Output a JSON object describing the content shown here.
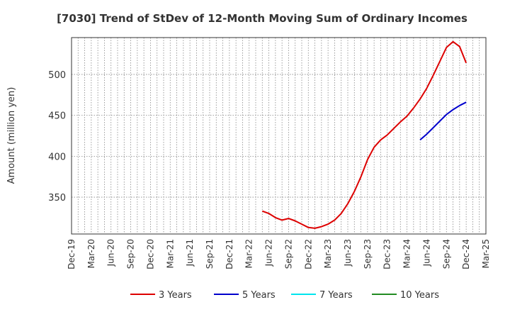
{
  "chart_data": {
    "type": "line",
    "title": "[7030]  Trend of StDev of 12-Month Moving Sum of Ordinary Incomes",
    "ylabel": "Amount (million yen)",
    "xlabel": "",
    "ylim": [
      305,
      545
    ],
    "yticks": [
      350,
      400,
      450,
      500
    ],
    "x_ticks": [
      "Dec-19",
      "Mar-20",
      "Jun-20",
      "Sep-20",
      "Dec-20",
      "Mar-21",
      "Jun-21",
      "Sep-21",
      "Dec-21",
      "Mar-22",
      "Jun-22",
      "Sep-22",
      "Dec-22",
      "Mar-23",
      "Jun-23",
      "Sep-23",
      "Dec-23",
      "Mar-24",
      "Jun-24",
      "Sep-24",
      "Dec-24",
      "Mar-25"
    ],
    "grid": true,
    "legend_position": "bottom",
    "series": [
      {
        "name": "3 Years",
        "color": "#dd0000",
        "x": [
          "May-22",
          "Jun-22",
          "Jul-22",
          "Aug-22",
          "Sep-22",
          "Oct-22",
          "Nov-22",
          "Dec-22",
          "Jan-23",
          "Feb-23",
          "Mar-23",
          "Apr-23",
          "May-23",
          "Jun-23",
          "Jul-23",
          "Aug-23",
          "Sep-23",
          "Oct-23",
          "Nov-23",
          "Dec-23",
          "Jan-24",
          "Feb-24",
          "Mar-24",
          "Apr-24",
          "May-24",
          "Jun-24",
          "Jul-24",
          "Aug-24",
          "Sep-24",
          "Oct-24",
          "Nov-24",
          "Dec-24"
        ],
        "values": [
          333,
          330,
          325,
          322,
          324,
          321,
          317,
          313,
          312,
          314,
          317,
          322,
          330,
          342,
          357,
          375,
          396,
          411,
          420,
          426,
          434,
          442,
          449,
          459,
          470,
          483,
          499,
          516,
          533,
          540,
          534,
          514
        ]
      },
      {
        "name": "5 Years",
        "color": "#0000cc",
        "x": [
          "May-24",
          "Jun-24",
          "Jul-24",
          "Aug-24",
          "Sep-24",
          "Oct-24",
          "Nov-24",
          "Dec-24"
        ],
        "values": [
          420,
          427,
          435,
          443,
          451,
          457,
          462,
          466
        ]
      },
      {
        "name": "7 Years",
        "color": "#00e5ee",
        "x": [],
        "values": []
      },
      {
        "name": "10 Years",
        "color": "#228b22",
        "x": [],
        "values": []
      }
    ]
  }
}
